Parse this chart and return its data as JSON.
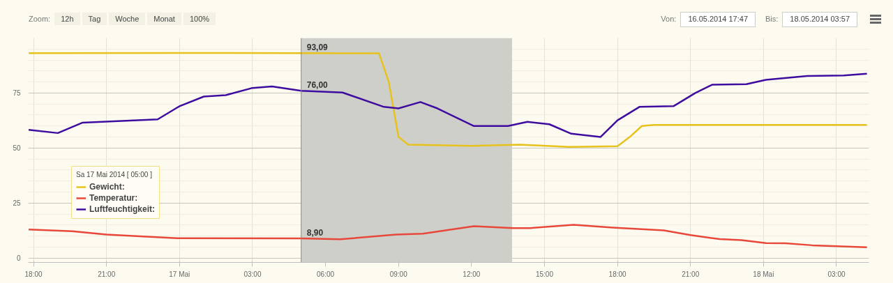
{
  "chart_data": {
    "type": "line",
    "annotations": [
      "Zoom:",
      "12h",
      "Tag",
      "Woche",
      "Monat",
      "100%",
      "Von:",
      "16.05.2014 17:47",
      "Bis:",
      "18.05.2014 03:57",
      {
        "text": "93,09",
        "x": "2014-05-17T05:00",
        "y": 93.09
      },
      {
        "text": "8,90",
        "x": "2014-05-17T05:00",
        "y": 8.9
      },
      {
        "text": "76,00",
        "x": "2014-05-17T05:00",
        "y": 76
      }
    ],
    "legend_title": "Sa 17 Mai 2014 [ 05:00 ]",
    "legend": "bottom left",
    "grid": true,
    "xlim": [
      "2014-05-16T17:47",
      "2014-05-18T04:20"
    ],
    "xticks": [
      {
        "value": "2014-05-16T18:00",
        "label": "18:00"
      },
      {
        "value": "2014-05-16T21:00",
        "label": "21:00"
      },
      {
        "value": "2014-05-17T00:00",
        "label": "17 Mai"
      },
      {
        "value": "2014-05-17T03:00",
        "label": "03:00"
      },
      {
        "value": "2014-05-17T06:00",
        "label": "06:00"
      },
      {
        "value": "2014-05-17T09:00",
        "label": "09:00"
      },
      {
        "value": "2014-05-17T12:00",
        "label": "12:00"
      },
      {
        "value": "2014-05-17T15:00",
        "label": "15:00"
      },
      {
        "value": "2014-05-17T18:00",
        "label": "18:00"
      },
      {
        "value": "2014-05-17T21:00",
        "label": "21:00"
      },
      {
        "value": "2014-05-18T00:00",
        "label": "18 Mai"
      },
      {
        "value": "2014-05-18T03:00",
        "label": "03:00"
      }
    ],
    "ylim": [
      -2,
      100
    ],
    "yticks": [
      0,
      25,
      50,
      75
    ],
    "bands": [
      {
        "axis": "x",
        "from": "2014-05-17T05:00",
        "to": "2014-05-17T13:40",
        "color": "#cfcfca"
      }
    ],
    "ref_lines": [
      {
        "axis": "x",
        "value": "2014-05-17T05:00",
        "color": "#8a8a8a"
      }
    ],
    "series": [
      {
        "name": "Gewicht:",
        "color": "#e8c21c",
        "x": [
          "2014-05-16T17:48",
          "2014-05-17T02:00",
          "2014-05-17T05:00",
          "2014-05-17T08:12",
          "2014-05-17T08:36",
          "2014-05-17T09:00",
          "2014-05-17T09:24",
          "2014-05-17T12:00",
          "2014-05-17T14:00",
          "2014-05-17T16:00",
          "2014-05-17T18:00",
          "2014-05-17T18:30",
          "2014-05-17T19:00",
          "2014-05-17T19:30",
          "2014-05-18T04:15"
        ],
        "values": [
          93.1,
          93.2,
          93.09,
          93.0,
          80,
          55,
          51.5,
          51,
          51.5,
          50.5,
          50.8,
          55,
          60,
          60.5,
          60.5
        ]
      },
      {
        "name": "Temperatur:",
        "color": "#e8483a",
        "x": [
          "2014-05-16T17:48",
          "2014-05-16T19:36",
          "2014-05-16T21:00",
          "2014-05-16T22:06",
          "2014-05-16T23:54",
          "2014-05-17T05:00",
          "2014-05-17T06:36",
          "2014-05-17T08:54",
          "2014-05-17T10:00",
          "2014-05-17T12:06",
          "2014-05-17T13:42",
          "2014-05-17T14:24",
          "2014-05-17T16:12",
          "2014-05-17T17:48",
          "2014-05-17T19:54",
          "2014-05-17T21:00",
          "2014-05-17T22:12",
          "2014-05-17T23:06",
          "2014-05-18T00:06",
          "2014-05-18T00:54",
          "2014-05-18T02:00",
          "2014-05-18T04:15"
        ],
        "values": [
          13,
          12.2,
          10.7,
          10,
          9,
          8.9,
          8.5,
          10.7,
          11.1,
          14.5,
          13.6,
          13.6,
          15.1,
          13.8,
          12.6,
          10.4,
          8.6,
          8.1,
          6.8,
          6.7,
          5.8,
          4.9
        ]
      },
      {
        "name": "Luftfeuchtigkeit:",
        "color": "#3f0ca0",
        "x": [
          "2014-05-16T17:48",
          "2014-05-16T19:00",
          "2014-05-16T20:00",
          "2014-05-16T23:06",
          "2014-05-17T00:00",
          "2014-05-17T01:00",
          "2014-05-17T01:54",
          "2014-05-17T03:00",
          "2014-05-17T03:48",
          "2014-05-17T05:00",
          "2014-05-17T06:42",
          "2014-05-17T08:24",
          "2014-05-17T09:00",
          "2014-05-17T09:54",
          "2014-05-17T10:36",
          "2014-05-17T12:06",
          "2014-05-17T13:30",
          "2014-05-17T14:18",
          "2014-05-17T15:12",
          "2014-05-17T16:06",
          "2014-05-17T17:18",
          "2014-05-17T18:00",
          "2014-05-17T18:54",
          "2014-05-17T20:18",
          "2014-05-17T21:12",
          "2014-05-17T21:54",
          "2014-05-17T23:18",
          "2014-05-18T00:06",
          "2014-05-18T01:48",
          "2014-05-18T03:18",
          "2014-05-18T04:15"
        ],
        "values": [
          58.3,
          56.8,
          61.5,
          63,
          69,
          73.4,
          74,
          77.3,
          78,
          76,
          75.2,
          68.7,
          68,
          70.9,
          68,
          60,
          60,
          61.9,
          60.8,
          56.5,
          55,
          62.6,
          68.7,
          69,
          75,
          78.8,
          79,
          81,
          82.7,
          83,
          83.8
        ]
      }
    ]
  }
}
